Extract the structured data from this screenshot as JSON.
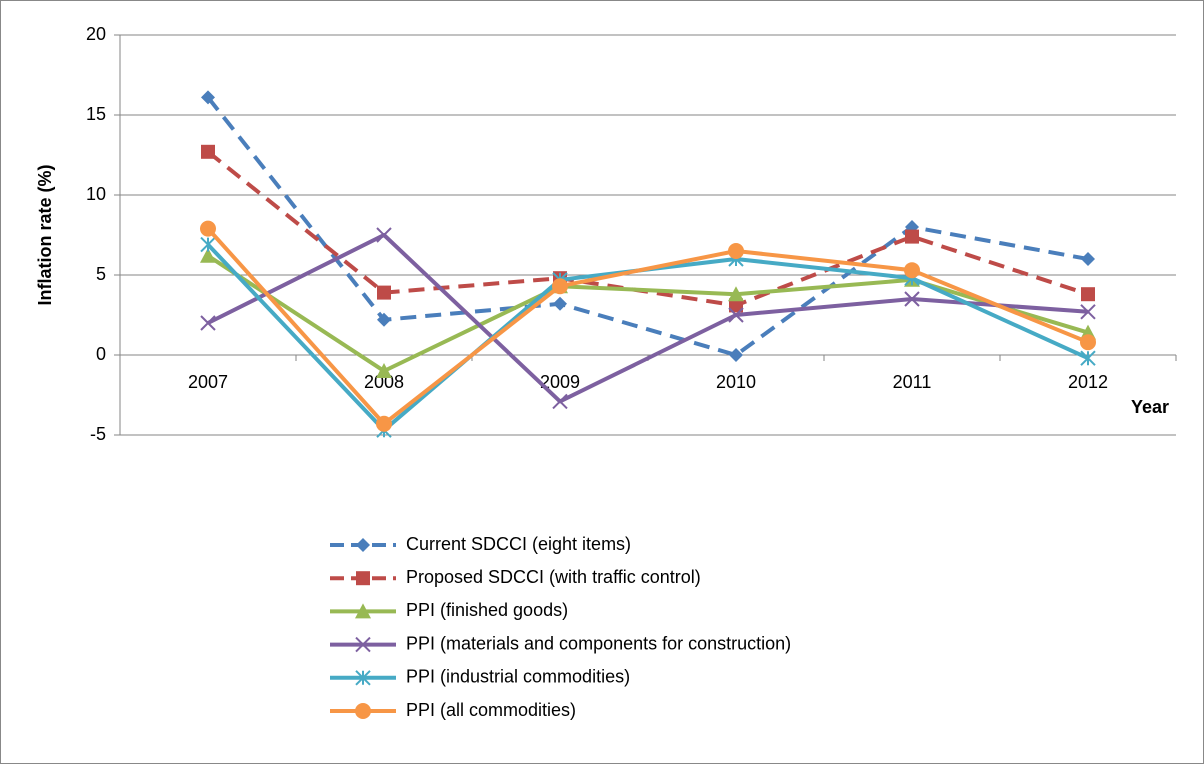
{
  "chart_data": {
    "type": "line",
    "y_label": "Inflation rate (%)",
    "x_label": "Year",
    "categories": [
      "2007",
      "2008",
      "2009",
      "2010",
      "2011",
      "2012"
    ],
    "ylim": [
      -5,
      20
    ],
    "yticks": [
      -5,
      0,
      5,
      10,
      15,
      20
    ],
    "grid": true,
    "series": [
      {
        "name": "Current SDCCI (eight items)",
        "color": "#4a7ebb",
        "dashed": true,
        "marker": "diamond",
        "values": [
          16.1,
          2.2,
          3.2,
          0,
          8.0,
          6.0
        ]
      },
      {
        "name": "Proposed SDCCI (with traffic control)",
        "color": "#be4b48",
        "dashed": true,
        "marker": "square",
        "values": [
          12.7,
          3.9,
          4.8,
          3.1,
          7.4,
          3.8
        ]
      },
      {
        "name": "PPI (finished goods)",
        "color": "#98b954",
        "dashed": false,
        "marker": "triangle",
        "values": [
          6.2,
          -1.0,
          4.3,
          3.8,
          4.7,
          1.4
        ]
      },
      {
        "name": "PPI (materials and components for construction)",
        "color": "#7d60a0",
        "dashed": false,
        "marker": "x",
        "values": [
          2.0,
          7.5,
          -2.9,
          2.5,
          3.5,
          2.7
        ]
      },
      {
        "name": "PPI (industrial commodities)",
        "color": "#46aac5",
        "dashed": false,
        "marker": "star",
        "values": [
          6.9,
          -4.7,
          4.7,
          6.0,
          4.8,
          -0.2
        ]
      },
      {
        "name": "PPI (all commodities)",
        "color": "#f79646",
        "dashed": false,
        "marker": "circle",
        "values": [
          7.9,
          -4.3,
          4.3,
          6.5,
          5.3,
          0.8
        ]
      }
    ]
  }
}
